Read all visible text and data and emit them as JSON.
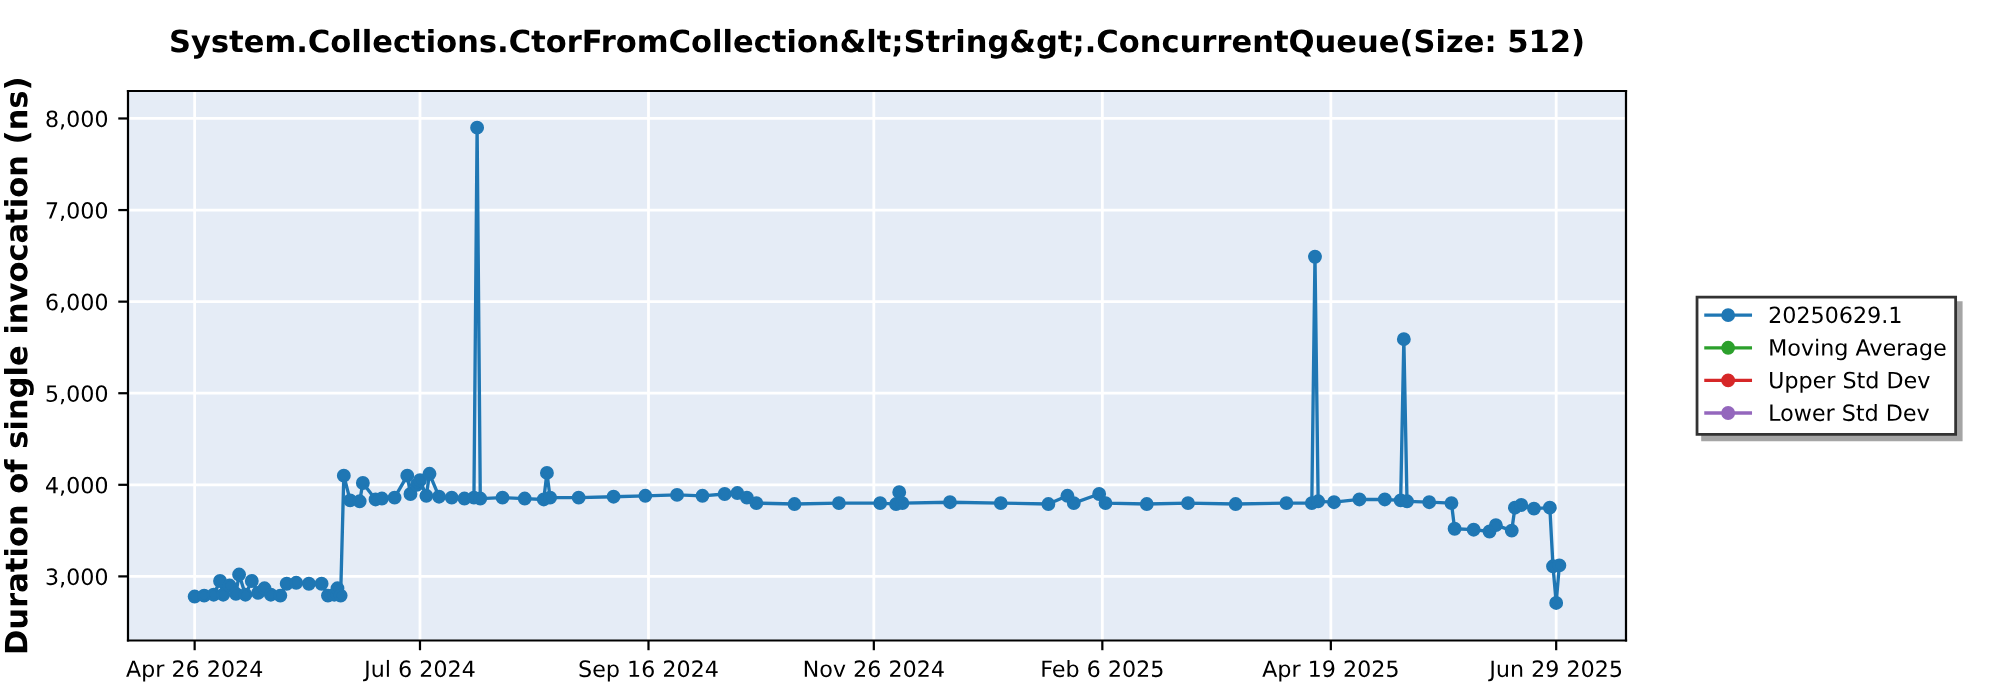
{
  "chart_data": {
    "type": "line",
    "title": "System.Collections.CtorFromCollection&lt;String&gt;.ConcurrentQueue(Size: 512)",
    "ylabel": "Duration of single invocation (ns)",
    "xlim": [
      "2024-04-05",
      "2025-07-21"
    ],
    "xticks": [
      {
        "value": "2024-04-26",
        "label": "Apr 26 2024"
      },
      {
        "value": "2024-07-06",
        "label": "Jul 6 2024"
      },
      {
        "value": "2024-09-16",
        "label": "Sep 16 2024"
      },
      {
        "value": "2024-11-26",
        "label": "Nov 26 2024"
      },
      {
        "value": "2025-02-06",
        "label": "Feb 6 2025"
      },
      {
        "value": "2025-04-19",
        "label": "Apr 19 2025"
      },
      {
        "value": "2025-06-29",
        "label": "Jun 29 2025"
      }
    ],
    "ylim": [
      2300,
      8300
    ],
    "yticks": [
      {
        "value": 3000,
        "label": "3,000"
      },
      {
        "value": 4000,
        "label": "4,000"
      },
      {
        "value": 5000,
        "label": "5,000"
      },
      {
        "value": 6000,
        "label": "6,000"
      },
      {
        "value": 7000,
        "label": "7,000"
      },
      {
        "value": 8000,
        "label": "8,000"
      }
    ],
    "grid": true,
    "legend": "right",
    "marker": "circle",
    "line_style": "solid",
    "series": [
      {
        "name": "20250629.1",
        "color": "#1f77b4",
        "x": [
          "2024-04-26",
          "2024-04-29",
          "2024-05-02",
          "2024-05-04",
          "2024-05-05",
          "2024-05-07",
          "2024-05-09",
          "2024-05-10",
          "2024-05-12",
          "2024-05-14",
          "2024-05-16",
          "2024-05-18",
          "2024-05-20",
          "2024-05-23",
          "2024-05-25",
          "2024-05-28",
          "2024-06-01",
          "2024-06-05",
          "2024-06-07",
          "2024-06-09",
          "2024-06-10",
          "2024-06-11",
          "2024-06-12",
          "2024-06-14",
          "2024-06-17",
          "2024-06-18",
          "2024-06-22",
          "2024-06-24",
          "2024-06-28",
          "2024-07-02",
          "2024-07-03",
          "2024-07-05",
          "2024-07-06",
          "2024-07-08",
          "2024-07-09",
          "2024-07-12",
          "2024-07-16",
          "2024-07-20",
          "2024-07-23",
          "2024-07-24",
          "2024-07-25",
          "2024-08-01",
          "2024-08-08",
          "2024-08-14",
          "2024-08-15",
          "2024-08-16",
          "2024-08-25",
          "2024-09-05",
          "2024-09-15",
          "2024-09-25",
          "2024-10-03",
          "2024-10-10",
          "2024-10-14",
          "2024-10-17",
          "2024-10-20",
          "2024-11-01",
          "2024-11-15",
          "2024-11-28",
          "2024-12-03",
          "2024-12-04",
          "2024-12-05",
          "2024-12-20",
          "2025-01-05",
          "2025-01-20",
          "2025-01-26",
          "2025-01-28",
          "2025-02-05",
          "2025-02-07",
          "2025-02-20",
          "2025-03-05",
          "2025-03-20",
          "2025-04-05",
          "2025-04-13",
          "2025-04-14",
          "2025-04-15",
          "2025-04-20",
          "2025-04-28",
          "2025-05-06",
          "2025-05-11",
          "2025-05-12",
          "2025-05-13",
          "2025-05-20",
          "2025-05-27",
          "2025-05-28",
          "2025-06-03",
          "2025-06-08",
          "2025-06-10",
          "2025-06-15",
          "2025-06-16",
          "2025-06-18",
          "2025-06-22",
          "2025-06-27",
          "2025-06-28",
          "2025-06-29",
          "2025-06-30"
        ],
        "values": [
          2780,
          2790,
          2800,
          2950,
          2800,
          2900,
          2810,
          3020,
          2800,
          2950,
          2820,
          2870,
          2800,
          2790,
          2920,
          2930,
          2920,
          2920,
          2790,
          2800,
          2870,
          2790,
          4100,
          3830,
          3820,
          4020,
          3840,
          3850,
          3860,
          4100,
          3900,
          4000,
          4050,
          3880,
          4120,
          3870,
          3860,
          3850,
          3860,
          7900,
          3850,
          3860,
          3850,
          3840,
          4130,
          3860,
          3860,
          3870,
          3880,
          3890,
          3880,
          3900,
          3910,
          3860,
          3800,
          3790,
          3800,
          3800,
          3790,
          3920,
          3800,
          3810,
          3800,
          3790,
          3880,
          3800,
          3900,
          3800,
          3790,
          3800,
          3790,
          3800,
          3800,
          6490,
          3820,
          3810,
          3840,
          3840,
          3830,
          5590,
          3820,
          3810,
          3800,
          3520,
          3510,
          3490,
          3560,
          3500,
          3750,
          3780,
          3740,
          3750,
          3110,
          2710,
          3120
        ]
      },
      {
        "name": "Moving Average",
        "color": "#2ca02c"
      },
      {
        "name": "Upper Std Dev",
        "color": "#d62728"
      },
      {
        "name": "Lower Std Dev",
        "color": "#9467bd"
      }
    ]
  }
}
